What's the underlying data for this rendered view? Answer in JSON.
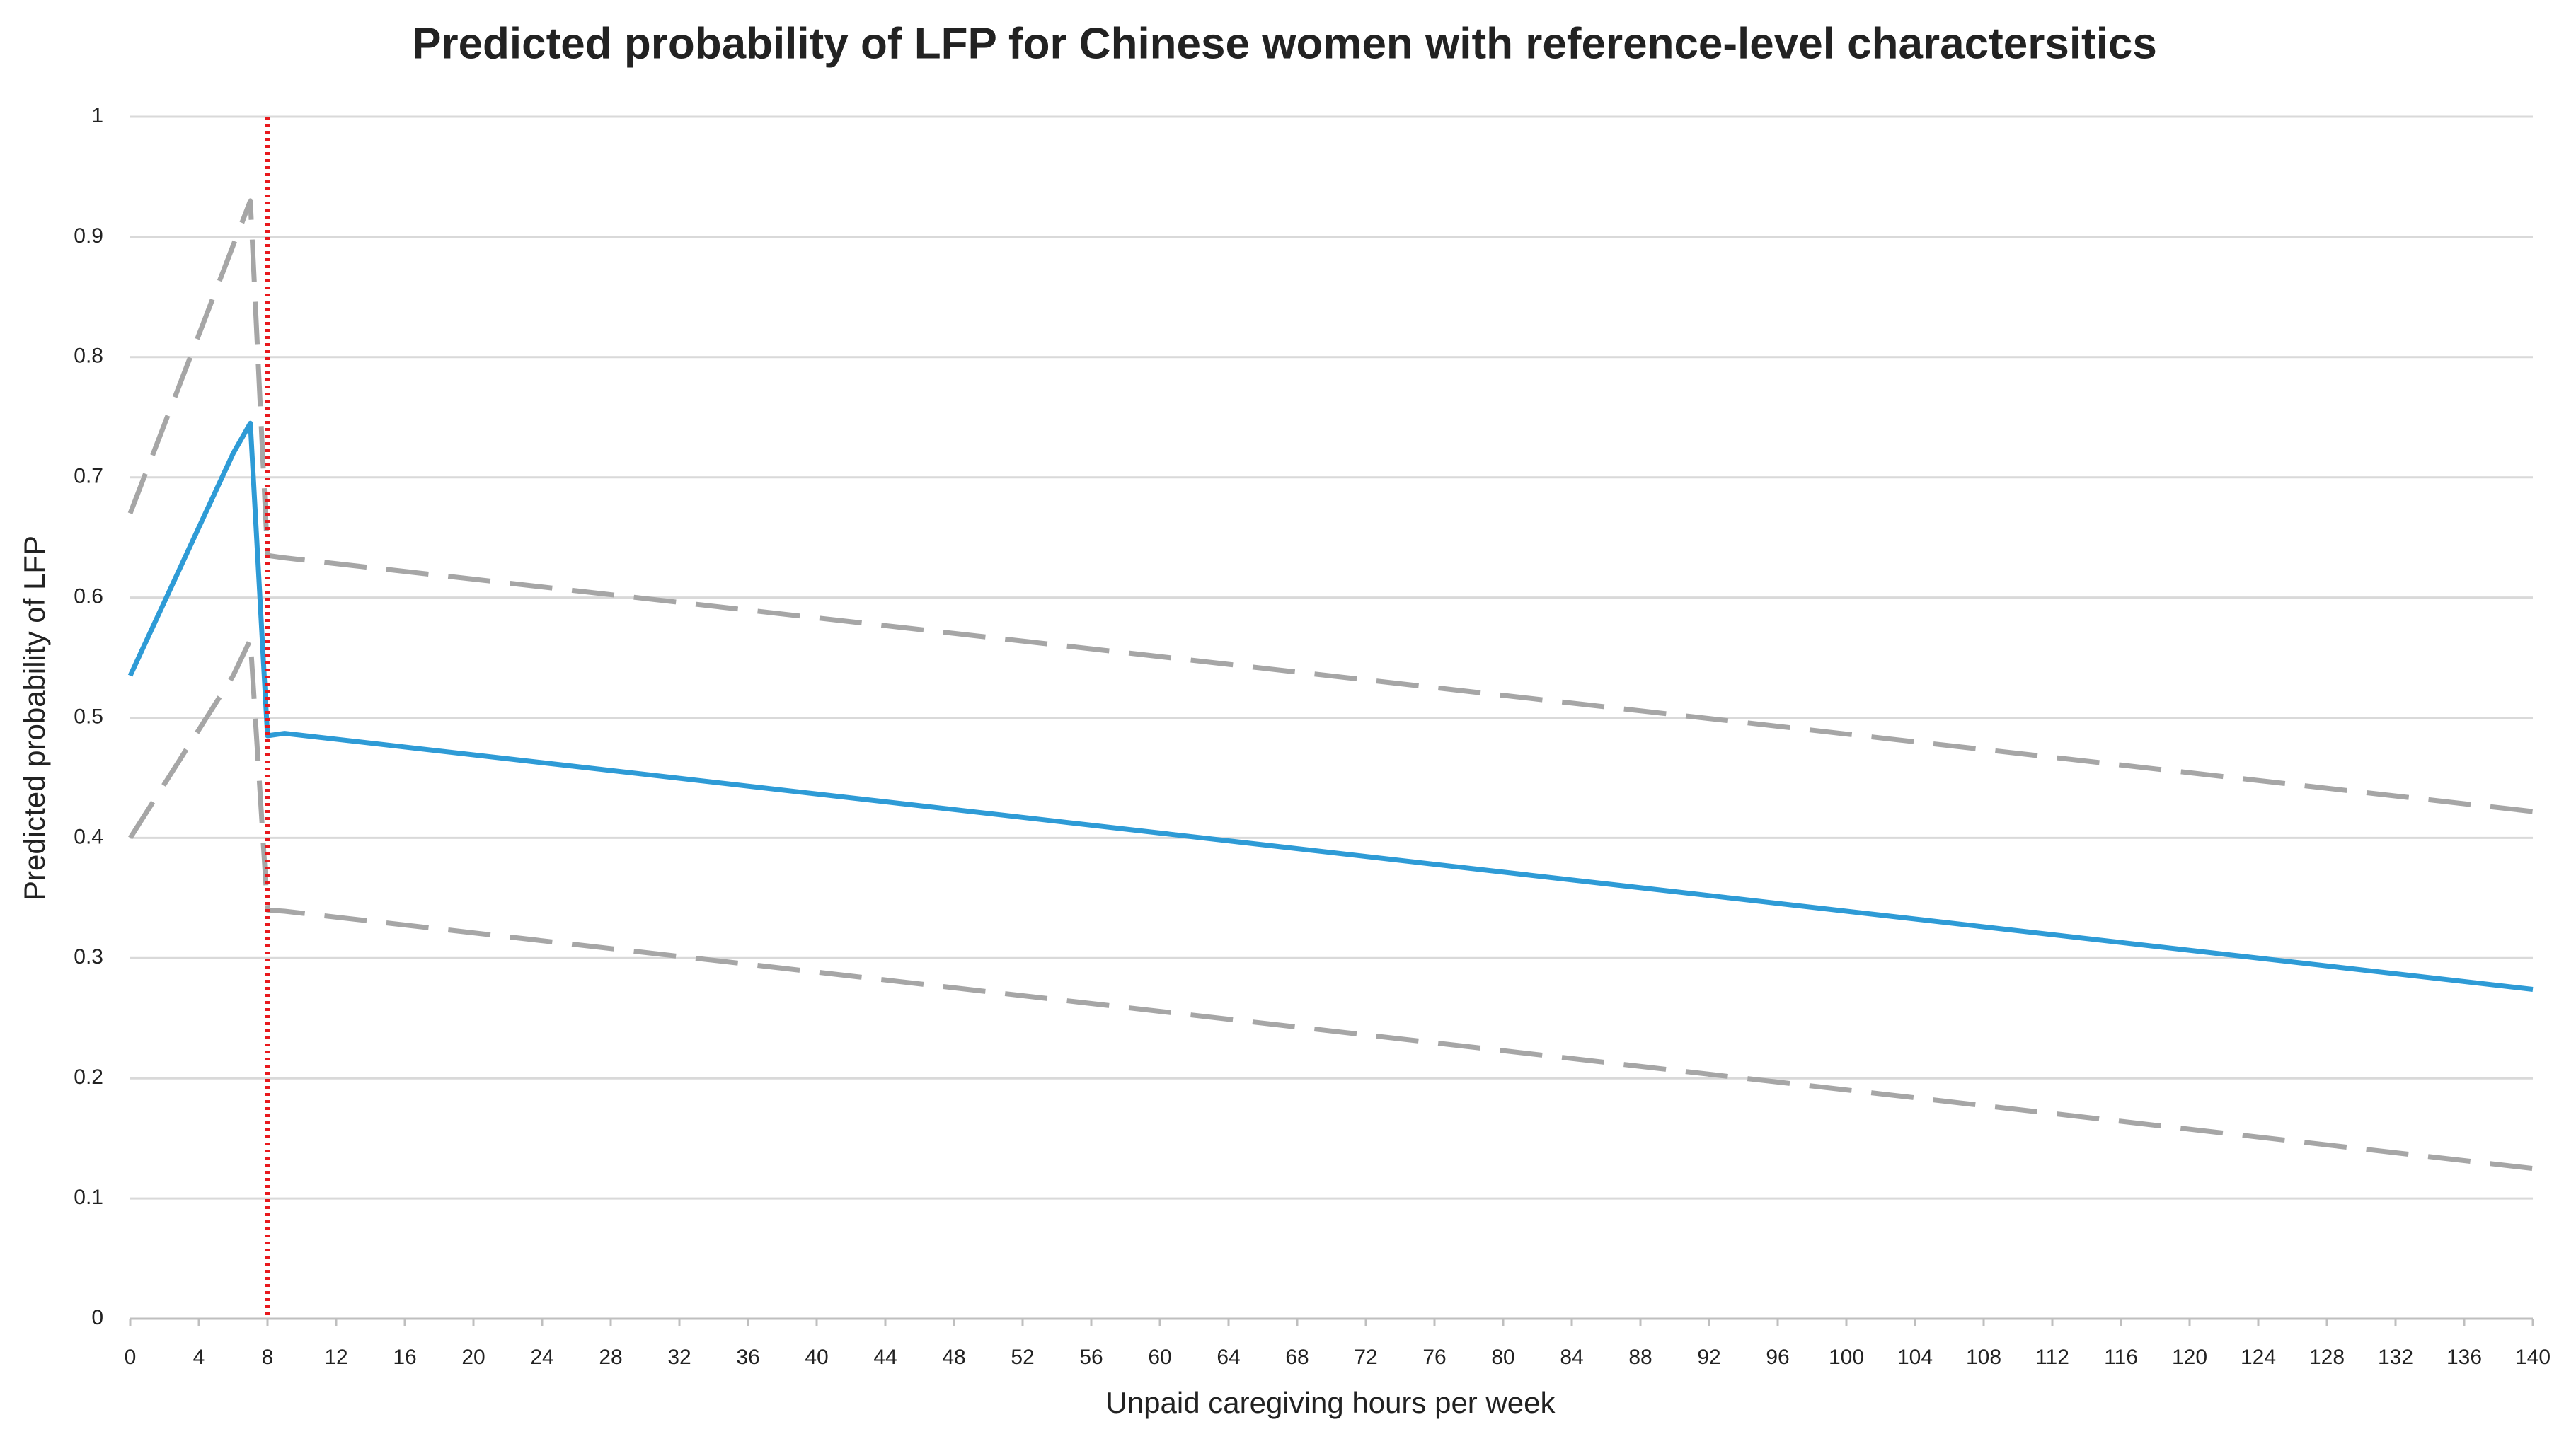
{
  "chart_data": {
    "type": "line",
    "title": "Predicted probability of LFP for Chinese women with reference-level charactersitics",
    "x_label": "Unpaid caregiving hours per week",
    "y_label": "Predicted probability of LFP",
    "x": [
      0,
      6,
      7,
      8,
      9,
      140
    ],
    "series": [
      {
        "color": "#2e9bd6",
        "dash": "solid",
        "values": [
          0.535,
          0.72,
          0.745,
          0.485,
          0.487,
          0.274
        ]
      },
      {
        "color": "#a6a6a6",
        "dash": "dashed",
        "values": [
          0.67,
          0.893,
          0.93,
          0.635,
          0.633,
          0.422
        ]
      },
      {
        "color": "#a6a6a6",
        "dash": "dashed",
        "values": [
          0.4,
          0.535,
          0.565,
          0.34,
          0.339,
          0.125
        ]
      }
    ],
    "vline": 8,
    "vline_color": "#e8191d",
    "xlim": [
      0,
      140
    ],
    "xticks": [
      0,
      4,
      8,
      12,
      16,
      20,
      24,
      28,
      32,
      36,
      40,
      44,
      48,
      52,
      56,
      60,
      64,
      68,
      72,
      76,
      80,
      84,
      88,
      92,
      96,
      100,
      104,
      108,
      112,
      116,
      120,
      124,
      128,
      132,
      136,
      140
    ],
    "ylim": [
      0,
      1
    ],
    "yticks": [
      0,
      0.1,
      0.2,
      0.3,
      0.4,
      0.5,
      0.6,
      0.7,
      0.8,
      0.9,
      1
    ],
    "grid": true
  }
}
